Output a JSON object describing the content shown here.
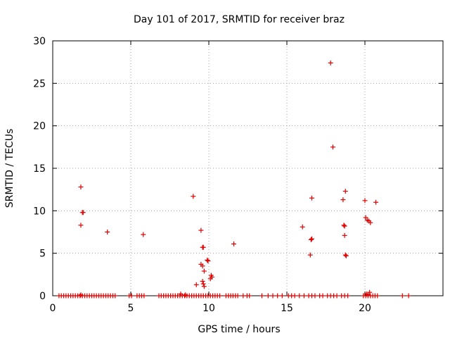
{
  "chart_data": {
    "type": "scatter",
    "title": "Day 101 of 2017, SRMTID for receiver braz",
    "xlabel": "GPS time / hours",
    "ylabel": "SRMTID / TECUs",
    "xlim": [
      0,
      25
    ],
    "ylim": [
      0,
      30
    ],
    "xticks": [
      0,
      5,
      10,
      15,
      20
    ],
    "yticks": [
      0,
      5,
      10,
      15,
      20,
      25,
      30
    ],
    "grid": true,
    "marker": "+",
    "series_color": "#e00000",
    "points": [
      [
        0.4,
        0
      ],
      [
        0.55,
        0
      ],
      [
        0.7,
        0
      ],
      [
        0.85,
        0
      ],
      [
        1.0,
        0
      ],
      [
        1.15,
        0
      ],
      [
        1.3,
        0
      ],
      [
        1.45,
        0
      ],
      [
        1.6,
        0
      ],
      [
        1.75,
        0
      ],
      [
        1.9,
        0
      ],
      [
        2.05,
        0
      ],
      [
        2.2,
        0
      ],
      [
        2.35,
        0
      ],
      [
        2.5,
        0
      ],
      [
        2.65,
        0
      ],
      [
        2.8,
        0
      ],
      [
        2.95,
        0
      ],
      [
        3.1,
        0
      ],
      [
        3.25,
        0
      ],
      [
        3.4,
        0
      ],
      [
        3.55,
        0
      ],
      [
        3.7,
        0
      ],
      [
        3.85,
        0
      ],
      [
        4.0,
        0
      ],
      [
        4.9,
        0
      ],
      [
        5.05,
        0
      ],
      [
        5.4,
        0
      ],
      [
        5.55,
        0
      ],
      [
        5.7,
        0
      ],
      [
        5.85,
        0
      ],
      [
        6.8,
        0
      ],
      [
        6.95,
        0
      ],
      [
        7.1,
        0
      ],
      [
        7.25,
        0
      ],
      [
        7.4,
        0
      ],
      [
        7.55,
        0
      ],
      [
        7.7,
        0
      ],
      [
        7.85,
        0
      ],
      [
        8.0,
        0
      ],
      [
        8.15,
        0
      ],
      [
        8.3,
        0
      ],
      [
        8.45,
        0
      ],
      [
        8.6,
        0
      ],
      [
        8.75,
        0
      ],
      [
        8.9,
        0
      ],
      [
        9.05,
        0
      ],
      [
        9.2,
        0
      ],
      [
        9.35,
        0
      ],
      [
        9.5,
        0
      ],
      [
        9.65,
        0
      ],
      [
        9.8,
        0
      ],
      [
        9.95,
        0
      ],
      [
        10.1,
        0
      ],
      [
        10.25,
        0
      ],
      [
        10.4,
        0
      ],
      [
        10.55,
        0
      ],
      [
        10.7,
        0
      ],
      [
        11.1,
        0
      ],
      [
        11.25,
        0
      ],
      [
        11.4,
        0
      ],
      [
        11.55,
        0
      ],
      [
        11.7,
        0
      ],
      [
        11.85,
        0
      ],
      [
        12.2,
        0
      ],
      [
        12.45,
        0
      ],
      [
        12.6,
        0
      ],
      [
        13.4,
        0
      ],
      [
        13.8,
        0
      ],
      [
        14.1,
        0
      ],
      [
        14.4,
        0
      ],
      [
        14.7,
        0
      ],
      [
        15.1,
        0
      ],
      [
        15.3,
        0
      ],
      [
        15.5,
        0
      ],
      [
        15.8,
        0
      ],
      [
        16.1,
        0
      ],
      [
        16.4,
        0
      ],
      [
        16.6,
        0
      ],
      [
        16.8,
        0
      ],
      [
        17.1,
        0
      ],
      [
        17.3,
        0
      ],
      [
        17.6,
        0
      ],
      [
        17.8,
        0
      ],
      [
        18.0,
        0
      ],
      [
        18.2,
        0
      ],
      [
        18.5,
        0
      ],
      [
        18.7,
        0
      ],
      [
        18.9,
        0
      ],
      [
        19.9,
        0
      ],
      [
        20.05,
        0
      ],
      [
        20.2,
        0
      ],
      [
        20.35,
        0
      ],
      [
        20.5,
        0
      ],
      [
        20.65,
        0
      ],
      [
        20.8,
        0
      ],
      [
        22.4,
        0
      ],
      [
        22.8,
        0
      ],
      [
        1.8,
        0.1
      ],
      [
        8.2,
        0.2
      ],
      [
        8.5,
        0.1
      ],
      [
        20.1,
        0.2
      ],
      [
        20.3,
        0.4
      ],
      [
        20.2,
        0.1
      ],
      [
        1.8,
        12.8
      ],
      [
        1.9,
        9.8
      ],
      [
        1.95,
        9.8
      ],
      [
        1.8,
        8.3
      ],
      [
        3.5,
        7.5
      ],
      [
        5.8,
        7.2
      ],
      [
        9.0,
        11.7
      ],
      [
        9.5,
        7.7
      ],
      [
        9.6,
        5.7
      ],
      [
        9.65,
        5.7
      ],
      [
        9.5,
        3.7
      ],
      [
        9.6,
        3.5
      ],
      [
        9.7,
        2.9
      ],
      [
        9.9,
        4.2
      ],
      [
        9.95,
        4.1
      ],
      [
        10.15,
        2.4
      ],
      [
        10.2,
        2.2
      ],
      [
        10.1,
        2.0
      ],
      [
        9.6,
        1.7
      ],
      [
        9.65,
        1.4
      ],
      [
        9.7,
        1.1
      ],
      [
        9.2,
        1.3
      ],
      [
        11.6,
        6.1
      ],
      [
        16.0,
        8.1
      ],
      [
        16.6,
        11.5
      ],
      [
        16.5,
        4.8
      ],
      [
        16.55,
        6.6
      ],
      [
        16.6,
        6.7
      ],
      [
        17.8,
        27.4
      ],
      [
        17.95,
        17.5
      ],
      [
        18.6,
        11.3
      ],
      [
        18.75,
        12.3
      ],
      [
        18.65,
        8.3
      ],
      [
        18.7,
        8.2
      ],
      [
        18.7,
        7.1
      ],
      [
        18.75,
        4.8
      ],
      [
        18.8,
        4.7
      ],
      [
        20.0,
        11.2
      ],
      [
        20.05,
        9.2
      ],
      [
        20.15,
        8.9
      ],
      [
        20.25,
        8.8
      ],
      [
        20.35,
        8.6
      ],
      [
        20.7,
        11.0
      ]
    ]
  }
}
